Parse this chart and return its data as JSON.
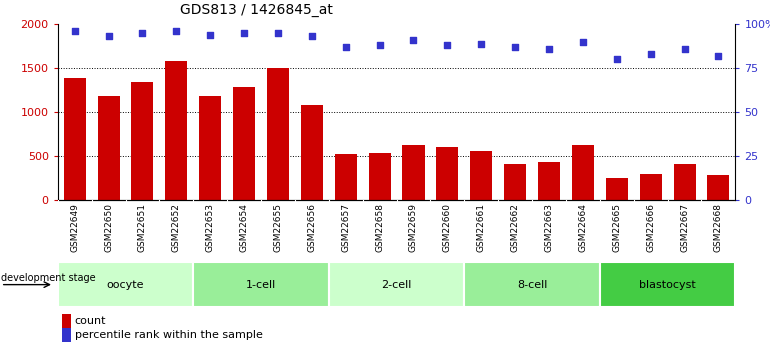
{
  "title": "GDS813 / 1426845_at",
  "samples": [
    "GSM22649",
    "GSM22650",
    "GSM22651",
    "GSM22652",
    "GSM22653",
    "GSM22654",
    "GSM22655",
    "GSM22656",
    "GSM22657",
    "GSM22658",
    "GSM22659",
    "GSM22660",
    "GSM22661",
    "GSM22662",
    "GSM22663",
    "GSM22664",
    "GSM22665",
    "GSM22666",
    "GSM22667",
    "GSM22668"
  ],
  "counts": [
    1390,
    1180,
    1340,
    1580,
    1180,
    1280,
    1500,
    1080,
    520,
    530,
    630,
    600,
    560,
    410,
    430,
    630,
    255,
    300,
    415,
    285
  ],
  "percentiles": [
    96,
    93,
    95,
    96,
    94,
    95,
    95,
    93,
    87,
    88,
    91,
    88,
    89,
    87,
    86,
    90,
    80,
    83,
    86,
    82
  ],
  "bar_color": "#cc0000",
  "dot_color": "#3333cc",
  "groups": [
    {
      "label": "oocyte",
      "start": 0,
      "end": 4,
      "color": "#ccffcc"
    },
    {
      "label": "1-cell",
      "start": 4,
      "end": 8,
      "color": "#99ee99"
    },
    {
      "label": "2-cell",
      "start": 8,
      "end": 12,
      "color": "#ccffcc"
    },
    {
      "label": "8-cell",
      "start": 12,
      "end": 16,
      "color": "#99ee99"
    },
    {
      "label": "blastocyst",
      "start": 16,
      "end": 20,
      "color": "#44cc44"
    }
  ],
  "ylim_left": [
    0,
    2000
  ],
  "ylim_right": [
    0,
    100
  ],
  "yticks_left": [
    0,
    500,
    1000,
    1500,
    2000
  ],
  "yticks_right": [
    0,
    25,
    50,
    75,
    100
  ],
  "yticklabels_right": [
    "0",
    "25",
    "50",
    "75",
    "100%"
  ],
  "grid_values": [
    500,
    1000,
    1500
  ],
  "xtick_bg_color": "#cccccc",
  "group_border_color": "#ffffff"
}
